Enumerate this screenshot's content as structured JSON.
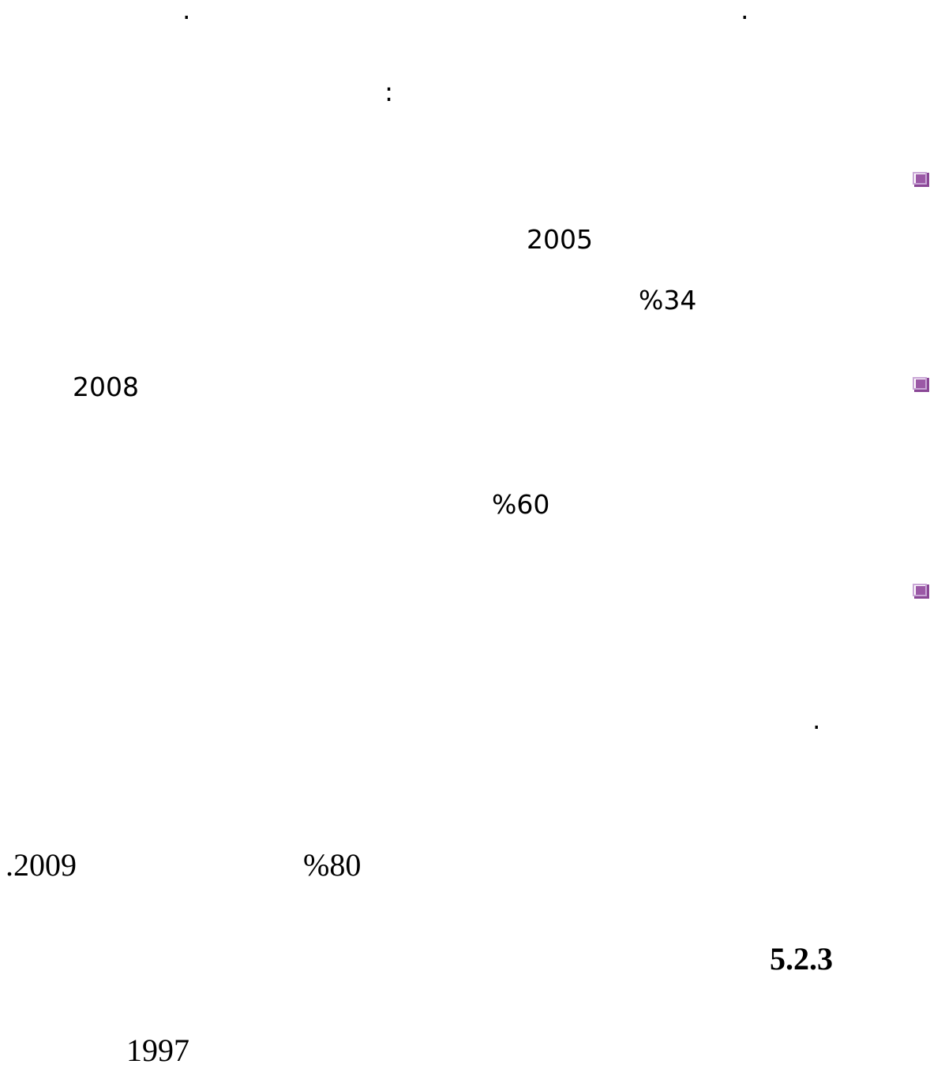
{
  "punctuation": {
    "dot_top_left": ".",
    "dot_top_right": ".",
    "colon": ":",
    "dot_middle": "."
  },
  "bullets": [
    {
      "icon": "square-bullet-icon",
      "color": "#9b59a6"
    },
    {
      "icon": "square-bullet-icon",
      "color": "#9b59a6"
    },
    {
      "icon": "square-bullet-icon",
      "color": "#9b59a6"
    }
  ],
  "numbers": {
    "year_2005": "2005",
    "pct_34": "%34",
    "year_2008": "2008",
    "pct_60": "%60",
    "year_2009": ".2009",
    "pct_80": "%80",
    "section": "5.2.3",
    "year_1997": "1997"
  }
}
